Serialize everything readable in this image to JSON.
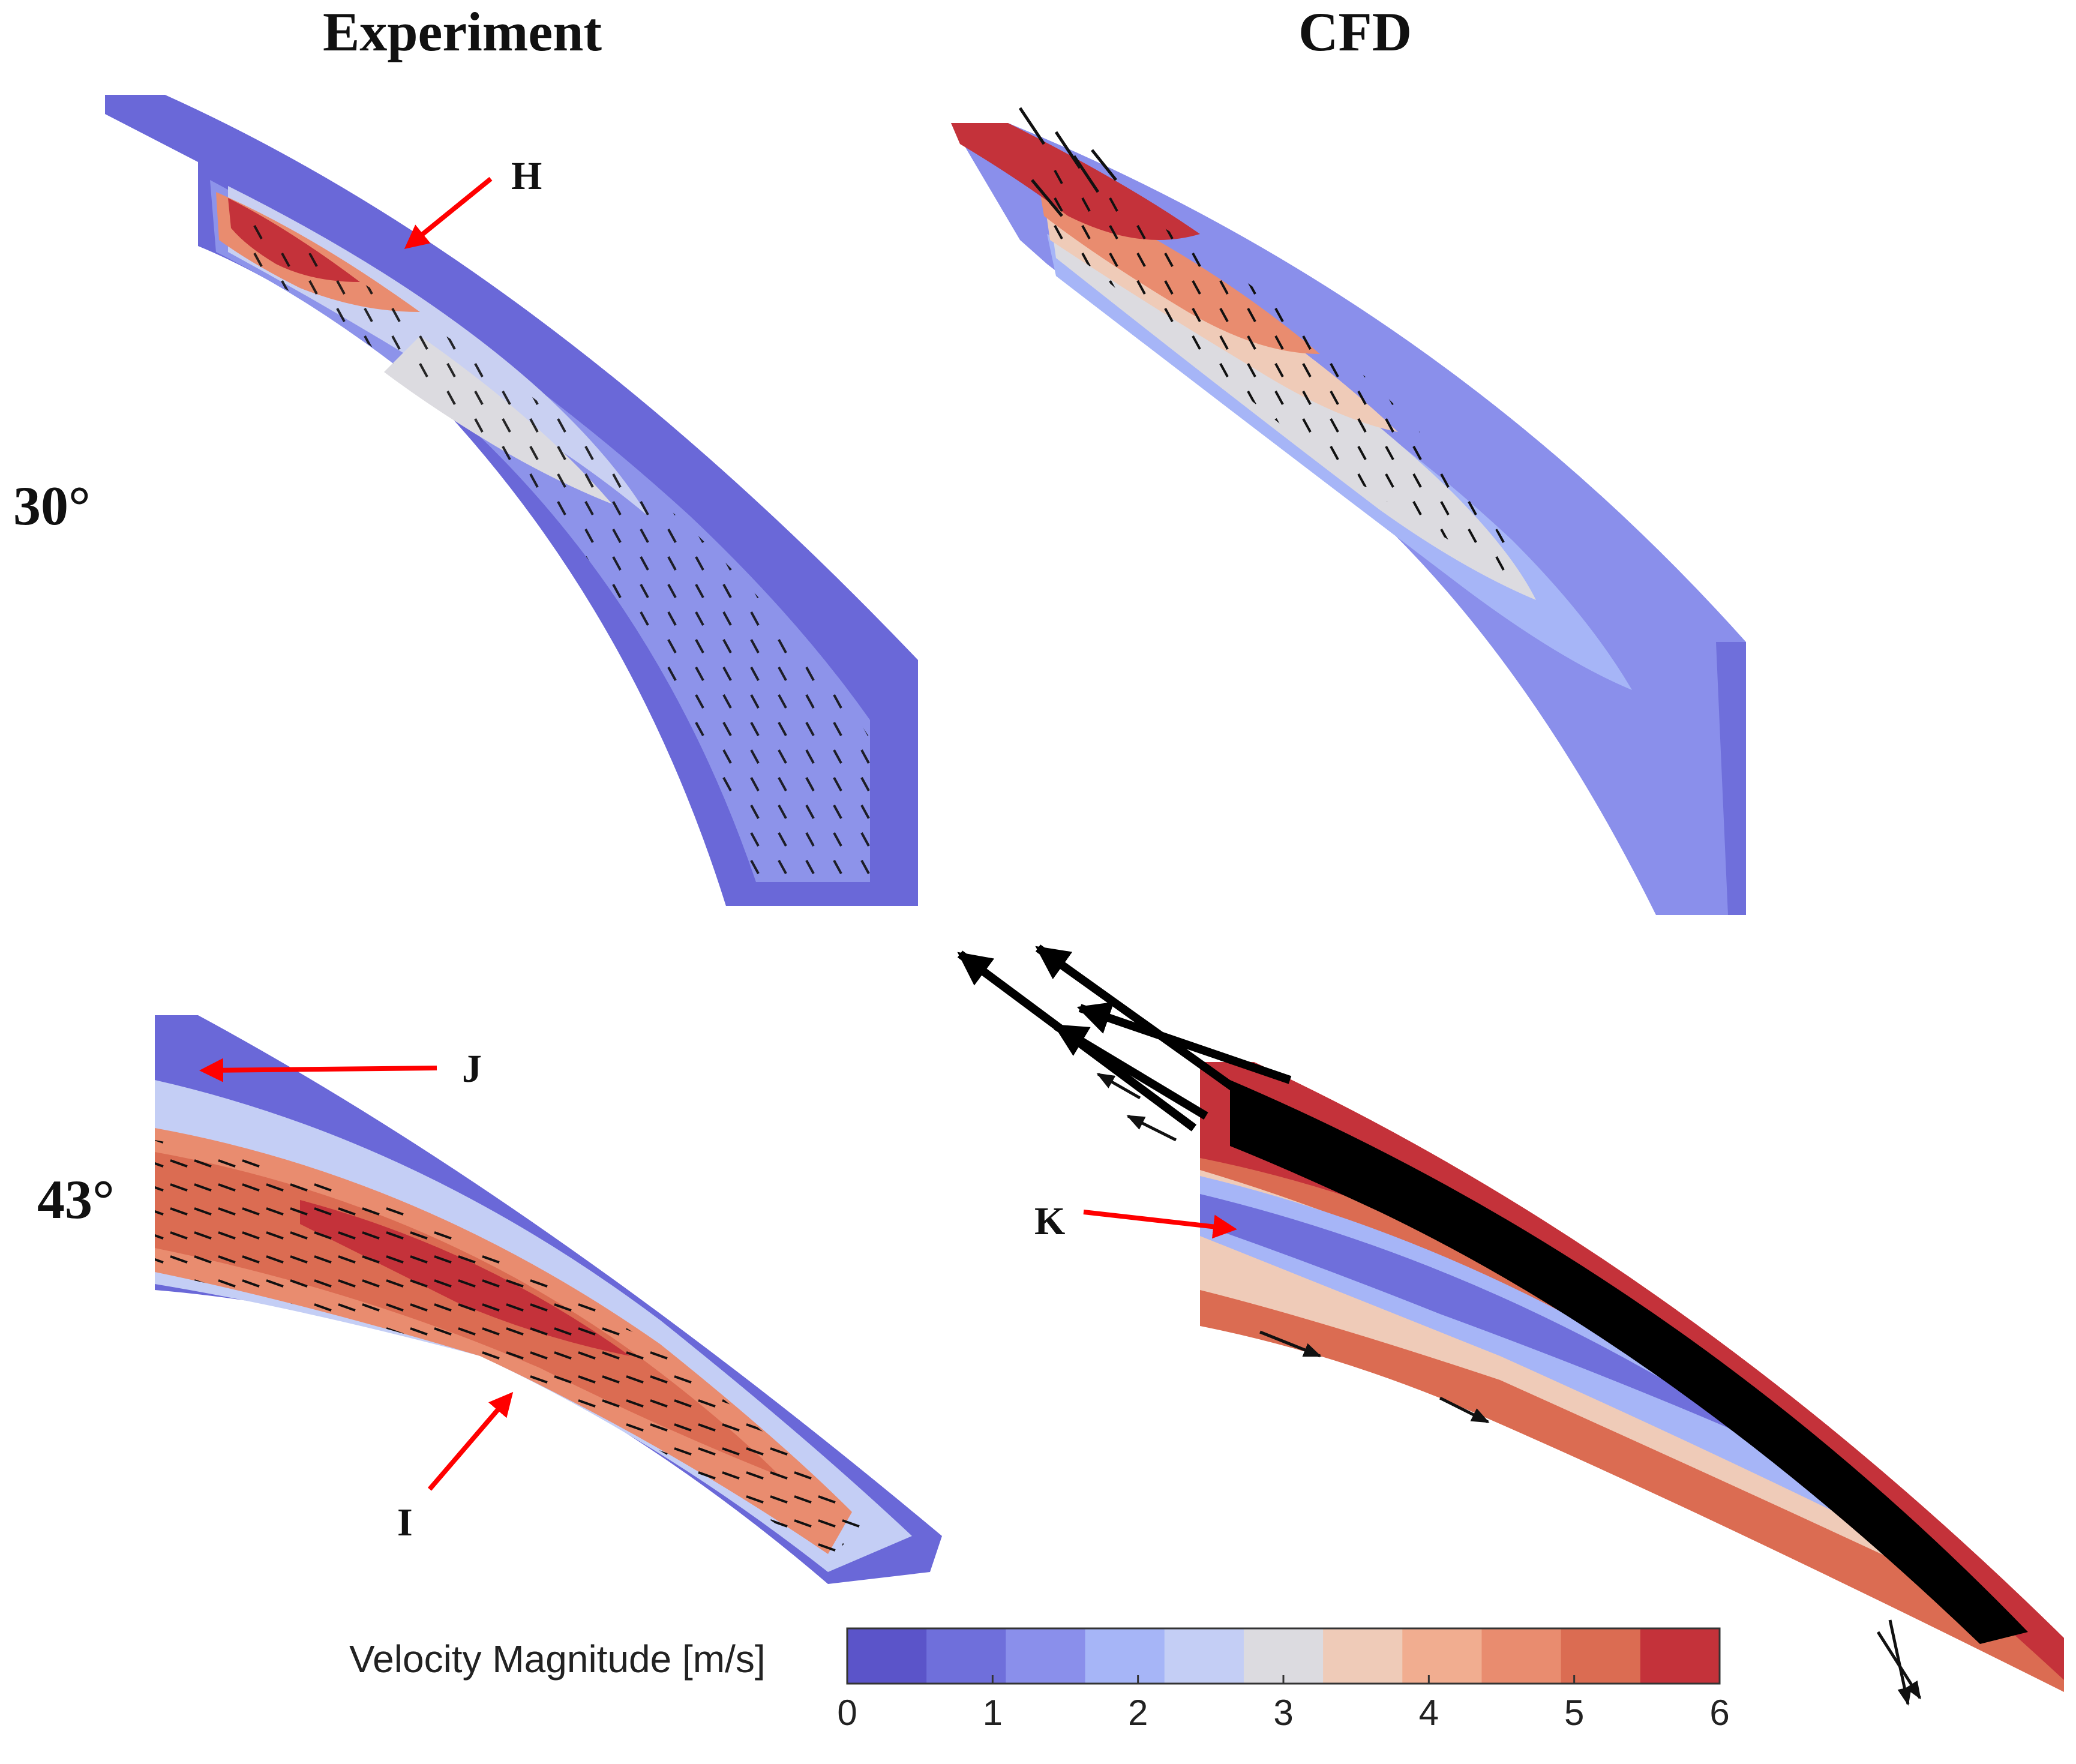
{
  "column_titles": {
    "left": "Experiment",
    "right": "CFD"
  },
  "row_labels": {
    "top": "30°",
    "bottom": "43°"
  },
  "callouts": {
    "h": "H",
    "i": "I",
    "j": "J",
    "k": "K"
  },
  "colorbar": {
    "label": "Velocity Magnitude [m/s]",
    "min": 0,
    "max": 6,
    "ticks": [
      "0",
      "1",
      "2",
      "3",
      "4",
      "5",
      "6"
    ],
    "colors": [
      "#5b54c9",
      "#6f6fdb",
      "#8a8feb",
      "#a6b5f7",
      "#c4cef5",
      "#dcdbe0",
      "#efcbb8",
      "#f1ad90",
      "#e98c6f",
      "#db6c52",
      "#c4323a"
    ]
  },
  "colors": {
    "arrow": "#ff0000",
    "vector": "#111111"
  }
}
